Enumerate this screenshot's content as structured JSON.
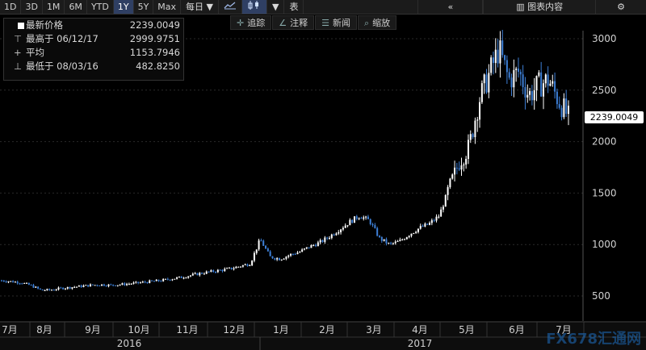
{
  "toolbar": {
    "ranges": [
      "1D",
      "3D",
      "1M",
      "6M",
      "YTD",
      "1Y",
      "5Y",
      "Max"
    ],
    "active_range": "1Y",
    "period": "每日",
    "dropdown_arrow": "▼",
    "chart_line_icon": "line-chart-icon",
    "candle_icon": "candlestick-icon",
    "table_label": "表",
    "collapse": "«",
    "chart_content": "图表内容",
    "settings_icon": "gear-icon"
  },
  "tools": {
    "track": "追踪",
    "annotate": "注释",
    "news": "新闻",
    "zoom": "缩放"
  },
  "legend": {
    "latest_label": "最新价格",
    "latest_value": "2239.0049",
    "high_label": "最高于 06/12/17",
    "high_value": "2999.9751",
    "avg_label": "平均",
    "avg_value": "1153.7946",
    "low_label": "最低于 08/03/16",
    "low_value": "482.8250"
  },
  "price_tag": "2239.0049",
  "watermark": "FX678汇通网",
  "chart_data": {
    "type": "candlestick",
    "colors": {
      "up": "#ffffff",
      "down": "#3d7fd6"
    },
    "y_ticks": [
      500,
      1000,
      1500,
      2000,
      2500,
      3000
    ],
    "ylim": [
      380,
      3080
    ],
    "x_months": [
      "7月",
      "8月",
      "9月",
      "10月",
      "11月",
      "12月",
      "1月",
      "2月",
      "3月",
      "4月",
      "5月",
      "6月",
      "7月"
    ],
    "x_years": [
      "2016",
      "2017"
    ],
    "closes": [
      650,
      640,
      630,
      600,
      555,
      560,
      575,
      585,
      595,
      605,
      610,
      605,
      612,
      620,
      630,
      640,
      650,
      665,
      680,
      700,
      720,
      735,
      750,
      765,
      790,
      815,
      1050,
      880,
      860,
      900,
      930,
      980,
      1020,
      1080,
      1150,
      1220,
      1280,
      1230,
      1060,
      1000,
      1030,
      1100,
      1160,
      1200,
      1280,
      1550,
      1800,
      1950,
      2400,
      2650,
      2900,
      2600,
      2680,
      2450,
      2550,
      2600,
      2400,
      2239
    ]
  }
}
